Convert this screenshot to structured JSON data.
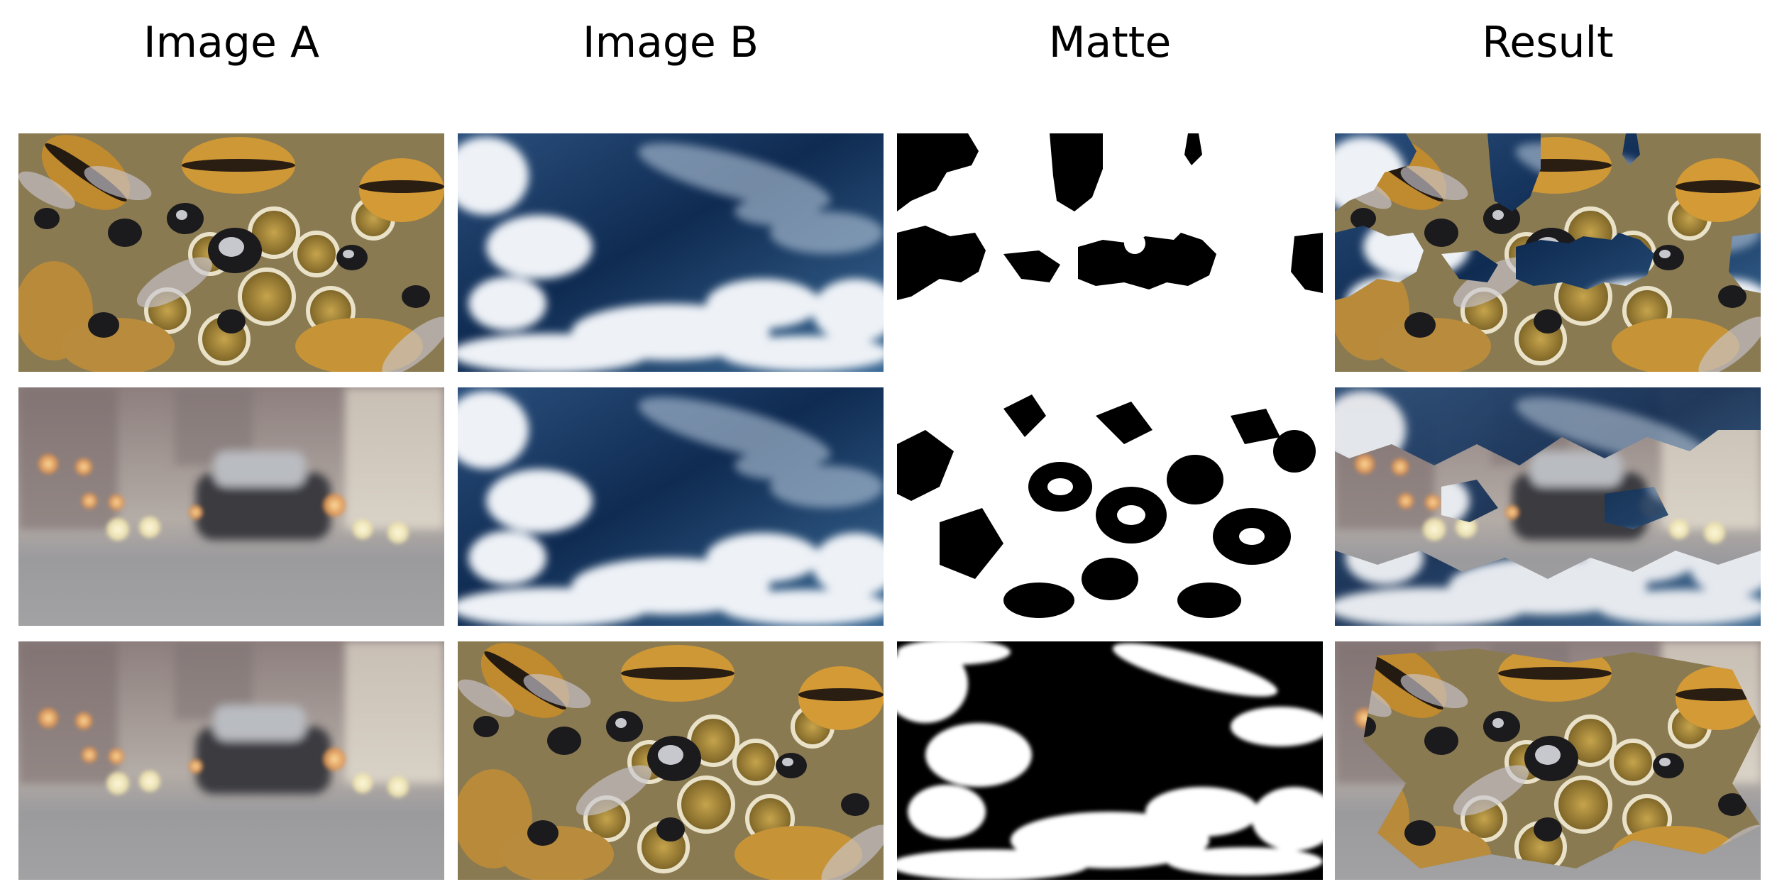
{
  "columns": [
    "Image A",
    "Image B",
    "Matte",
    "Result"
  ],
  "palette": {
    "bee_amber": "#c9902f",
    "bee_dark": "#1c1a1a",
    "honeycomb": "#a2873c",
    "wing_gray": "#b6b5bb",
    "sky_deep": "#13345e",
    "sky_mid": "#3d6890",
    "cloud_white": "#f3f5f8",
    "street_gray": "#9a999c",
    "bokeh_orange": "#f0a65c",
    "bokeh_yellow": "#f7eab0",
    "car_dark": "#27292d",
    "matte_black": "#000000",
    "matte_white": "#ffffff"
  }
}
